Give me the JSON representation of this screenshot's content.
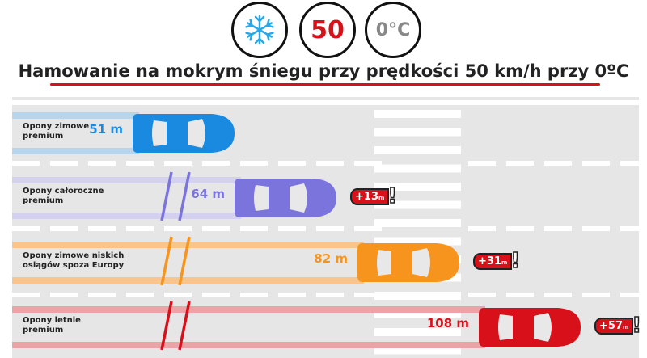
{
  "header": {
    "icons": [
      "snowflake-icon"
    ],
    "speed": "50",
    "temperature": "0°C",
    "title": "Hamowanie na mokrym śniegu przy prędkości 50 km/h przy 0ºC"
  },
  "lanes": [
    {
      "label_line1": "Opony zimowe",
      "label_line2": "premium",
      "distance": "51 m",
      "extra": "",
      "color": "#1a8ae0",
      "track": "#b7d6ee"
    },
    {
      "label_line1": "Opony całoroczne",
      "label_line2": "premium",
      "distance": "64 m",
      "extra_num": "+13",
      "extra_unit": "m",
      "color": "#7b74dd",
      "track": "#d3d0f0"
    },
    {
      "label_line1": "Opony zimowe niskich",
      "label_line2": "osiągów spoza Europy",
      "distance": "82 m",
      "extra_num": "+31",
      "extra_unit": "m",
      "color": "#f7941d",
      "track": "#fbc48a"
    },
    {
      "label_line1": "Opony letnie",
      "label_line2": "premium",
      "distance": "108 m",
      "extra_num": "+57",
      "extra_unit": "m",
      "color": "#d8101a",
      "track": "#eba3a6"
    }
  ]
}
